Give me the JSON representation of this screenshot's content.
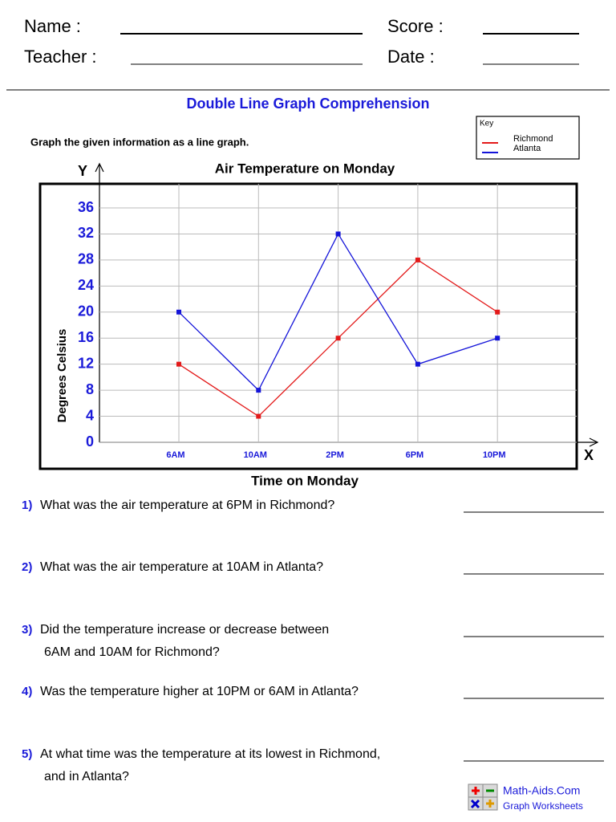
{
  "header": {
    "name_label": "Name :",
    "teacher_label": "Teacher :",
    "score_label": "Score :",
    "date_label": "Date :"
  },
  "title": "Double Line Graph Comprehension",
  "instruction": "Graph the given information as a line graph.",
  "key_label": "Key",
  "chart_data": {
    "type": "line",
    "title": "Air Temperature on Monday",
    "y_axis_symbol": "Y",
    "x_axis_symbol": "X",
    "y_label": "Degrees Celsius",
    "x_label": "Time on Monday",
    "categories": [
      "6AM",
      "10AM",
      "2PM",
      "6PM",
      "10PM"
    ],
    "series": [
      {
        "name": "Richmond",
        "color": "#e31a1a",
        "values": [
          12,
          4,
          16,
          28,
          20
        ]
      },
      {
        "name": "Atlanta",
        "color": "#1414d9",
        "values": [
          20,
          8,
          32,
          12,
          16
        ]
      }
    ],
    "ylim": [
      0,
      36
    ],
    "yticks": [
      0,
      4,
      8,
      12,
      16,
      20,
      24,
      28,
      32,
      36
    ],
    "grid": true
  },
  "questions": [
    {
      "number": "1)",
      "lines": [
        "What was the air temperature at 6PM in Richmond?"
      ]
    },
    {
      "number": "2)",
      "lines": [
        "What was the air temperature at 10AM in Atlanta?"
      ]
    },
    {
      "number": "3)",
      "lines": [
        "Did the temperature increase or decrease between",
        "6AM and 10AM for Richmond?"
      ]
    },
    {
      "number": "4)",
      "lines": [
        "Was the temperature higher at 10PM or 6AM in Atlanta?"
      ]
    },
    {
      "number": "5)",
      "lines": [
        "At what time was the temperature at its lowest in Richmond,",
        "and in Atlanta?"
      ]
    }
  ],
  "footer": {
    "site": "Math-Aids.Com",
    "subtitle": "Graph Worksheets"
  }
}
